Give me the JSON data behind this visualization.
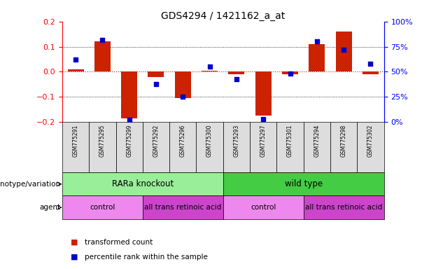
{
  "title": "GDS4294 / 1421162_a_at",
  "samples": [
    "GSM775291",
    "GSM775295",
    "GSM775299",
    "GSM775292",
    "GSM775296",
    "GSM775300",
    "GSM775293",
    "GSM775297",
    "GSM775301",
    "GSM775294",
    "GSM775298",
    "GSM775302"
  ],
  "bar_values": [
    0.01,
    0.12,
    -0.185,
    -0.02,
    -0.105,
    0.005,
    -0.01,
    -0.175,
    -0.01,
    0.11,
    0.16,
    -0.01
  ],
  "dot_values_pct": [
    62,
    82,
    2,
    38,
    25,
    55,
    43,
    3,
    48,
    80,
    72,
    58
  ],
  "ylim_left": [
    -0.2,
    0.2
  ],
  "ylim_right": [
    0,
    100
  ],
  "bar_color": "#cc2200",
  "dot_color": "#0000cc",
  "zero_line_color": "#cc2200",
  "bg_color": "#ffffff",
  "genotype_groups": [
    {
      "label": "RARa knockout",
      "start": 0,
      "end": 6,
      "color": "#99ee99"
    },
    {
      "label": "wild type",
      "start": 6,
      "end": 12,
      "color": "#44cc44"
    }
  ],
  "agent_groups": [
    {
      "label": "control",
      "start": 0,
      "end": 3,
      "color": "#ee88ee"
    },
    {
      "label": "all trans retinoic acid",
      "start": 3,
      "end": 6,
      "color": "#cc44cc"
    },
    {
      "label": "control",
      "start": 6,
      "end": 9,
      "color": "#ee88ee"
    },
    {
      "label": "all trans retinoic acid",
      "start": 9,
      "end": 12,
      "color": "#cc44cc"
    }
  ],
  "legend_items": [
    {
      "label": "transformed count",
      "color": "#cc2200"
    },
    {
      "label": "percentile rank within the sample",
      "color": "#0000cc"
    }
  ],
  "left_yticks": [
    -0.2,
    -0.1,
    0.0,
    0.1,
    0.2
  ],
  "right_yticks": [
    0,
    25,
    50,
    75,
    100
  ],
  "right_yticklabels": [
    "0%",
    "25%",
    "50%",
    "75%",
    "100%"
  ]
}
